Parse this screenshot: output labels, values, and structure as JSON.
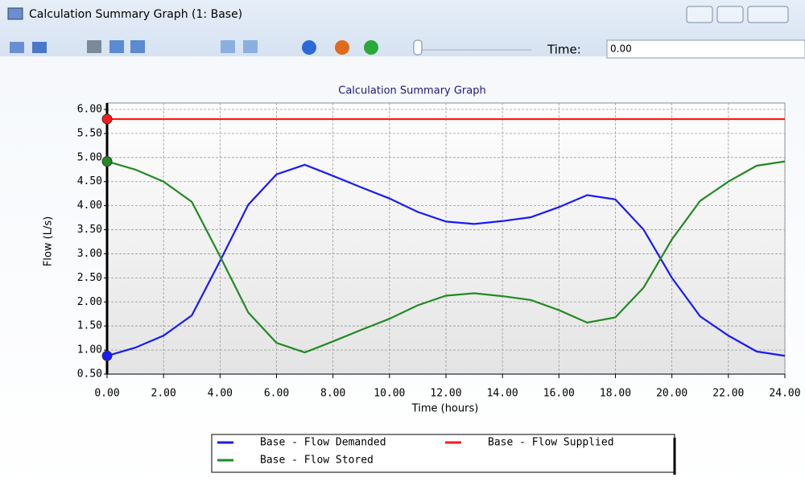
{
  "window": {
    "title": "Calculation Summary Graph (1: Base)",
    "time_label": "Time:",
    "time_value": "0.00"
  },
  "chart_data": {
    "type": "line",
    "title": "Calculation Summary Graph",
    "x_label": "Time (hours)",
    "y_label": "Flow (L/s)",
    "x": [
      0,
      1,
      2,
      3,
      4,
      5,
      6,
      7,
      8,
      9,
      10,
      11,
      12,
      13,
      14,
      15,
      16,
      17,
      18,
      19,
      20,
      21,
      22,
      23,
      24
    ],
    "series": [
      {
        "name": "Base - Flow Demanded",
        "color": "#1a1aff",
        "values": [
          0.88,
          1.05,
          1.3,
          1.72,
          2.85,
          4.02,
          4.65,
          4.85,
          4.62,
          4.38,
          4.15,
          3.87,
          3.67,
          3.62,
          3.68,
          3.76,
          3.97,
          4.22,
          4.13,
          3.5,
          2.5,
          1.7,
          1.3,
          0.97,
          0.88
        ]
      },
      {
        "name": "Base - Flow Supplied",
        "color": "#ff1a1a",
        "values": [
          5.8,
          5.8,
          5.8,
          5.8,
          5.8,
          5.8,
          5.8,
          5.8,
          5.8,
          5.8,
          5.8,
          5.8,
          5.8,
          5.8,
          5.8,
          5.8,
          5.8,
          5.8,
          5.8,
          5.8,
          5.8,
          5.8,
          5.8,
          5.8,
          5.8
        ]
      },
      {
        "name": "Base - Flow Stored",
        "color": "#228b22",
        "values": [
          4.92,
          4.75,
          4.5,
          4.08,
          2.95,
          1.78,
          1.15,
          0.95,
          1.18,
          1.42,
          1.65,
          1.93,
          2.13,
          2.18,
          2.12,
          2.04,
          1.83,
          1.57,
          1.68,
          2.3,
          3.3,
          4.1,
          4.5,
          4.83,
          4.92
        ]
      }
    ],
    "xlim": [
      0,
      24
    ],
    "xticks": [
      {
        "value": 0,
        "label": "0.00"
      },
      {
        "value": 2,
        "label": "2.00"
      },
      {
        "value": 4,
        "label": "4.00"
      },
      {
        "value": 6,
        "label": "6.00"
      },
      {
        "value": 8,
        "label": "8.00"
      },
      {
        "value": 10,
        "label": "10.00"
      },
      {
        "value": 12,
        "label": "12.00"
      },
      {
        "value": 14,
        "label": "14.00"
      },
      {
        "value": 16,
        "label": "16.00"
      },
      {
        "value": 18,
        "label": "18.00"
      },
      {
        "value": 20,
        "label": "20.00"
      },
      {
        "value": 22,
        "label": "22.00"
      },
      {
        "value": 24,
        "label": "24.00"
      }
    ],
    "ylim": [
      0.5,
      6
    ],
    "yticks": [
      {
        "value": 0.5,
        "label": "0.50"
      },
      {
        "value": 1,
        "label": "1.00"
      },
      {
        "value": 1.5,
        "label": "1.50"
      },
      {
        "value": 2,
        "label": "2.00"
      },
      {
        "value": 2.5,
        "label": "2.50"
      },
      {
        "value": 3,
        "label": "3.00"
      },
      {
        "value": 3.5,
        "label": "3.50"
      },
      {
        "value": 4,
        "label": "4.00"
      },
      {
        "value": 4.5,
        "label": "4.50"
      },
      {
        "value": 5,
        "label": "5.00"
      },
      {
        "value": 5.5,
        "label": "5.50"
      },
      {
        "value": 6,
        "label": "6.00"
      }
    ],
    "grid": true
  }
}
